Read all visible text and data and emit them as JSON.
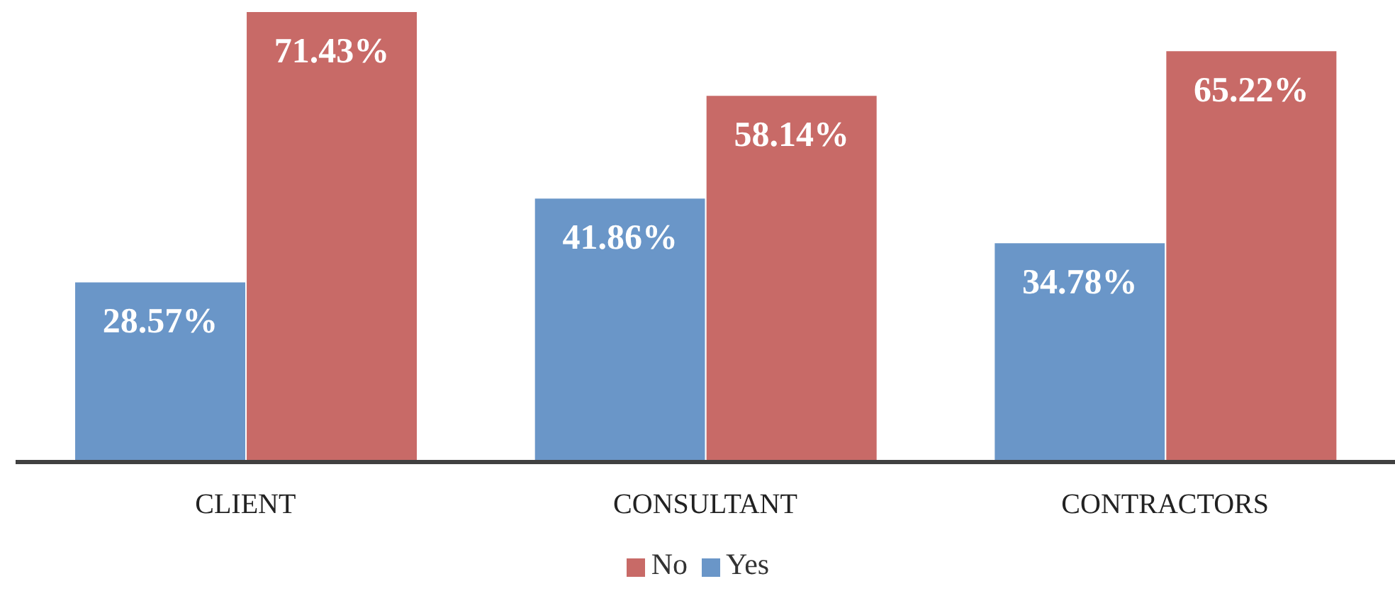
{
  "chart_data": {
    "type": "bar",
    "categories": [
      "CLIENT",
      "CONSULTANT",
      "CONTRACTORS"
    ],
    "series": [
      {
        "name": "Yes",
        "color": "#6a96c8",
        "values": [
          28.57,
          41.86,
          34.78
        ],
        "value_labels": [
          "28.57%",
          "41.86%",
          "34.78%"
        ]
      },
      {
        "name": "No",
        "color": "#c86a67",
        "values": [
          71.43,
          58.14,
          65.22
        ],
        "value_labels": [
          "71.43%",
          "58.14%",
          "65.22%"
        ]
      }
    ],
    "legend": "bottom"
  }
}
